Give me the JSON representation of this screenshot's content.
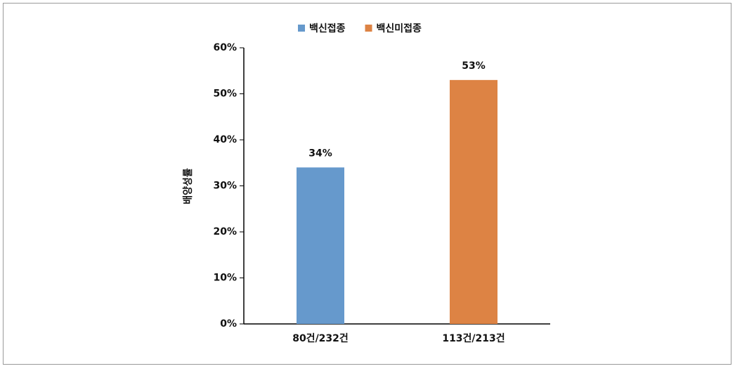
{
  "chart_data": {
    "type": "bar",
    "y_label": "배양성률",
    "categories": [
      "80건/232건",
      "113건/213건"
    ],
    "series": [
      {
        "name": "백신접종",
        "color": "#6699cc",
        "values": [
          34,
          null
        ],
        "value_labels": [
          "34%",
          null
        ]
      },
      {
        "name": "백신미접종",
        "color": "#dd8344",
        "values": [
          null,
          53
        ],
        "value_labels": [
          null,
          "53%"
        ]
      }
    ],
    "ylim": [
      0,
      60
    ],
    "yticks": [
      {
        "value": 0,
        "label": "0%"
      },
      {
        "value": 10,
        "label": "10%"
      },
      {
        "value": 20,
        "label": "20%"
      },
      {
        "value": 30,
        "label": "30%"
      },
      {
        "value": 40,
        "label": "40%"
      },
      {
        "value": 50,
        "label": "50%"
      },
      {
        "value": 60,
        "label": "60%"
      }
    ],
    "legend": "top"
  }
}
